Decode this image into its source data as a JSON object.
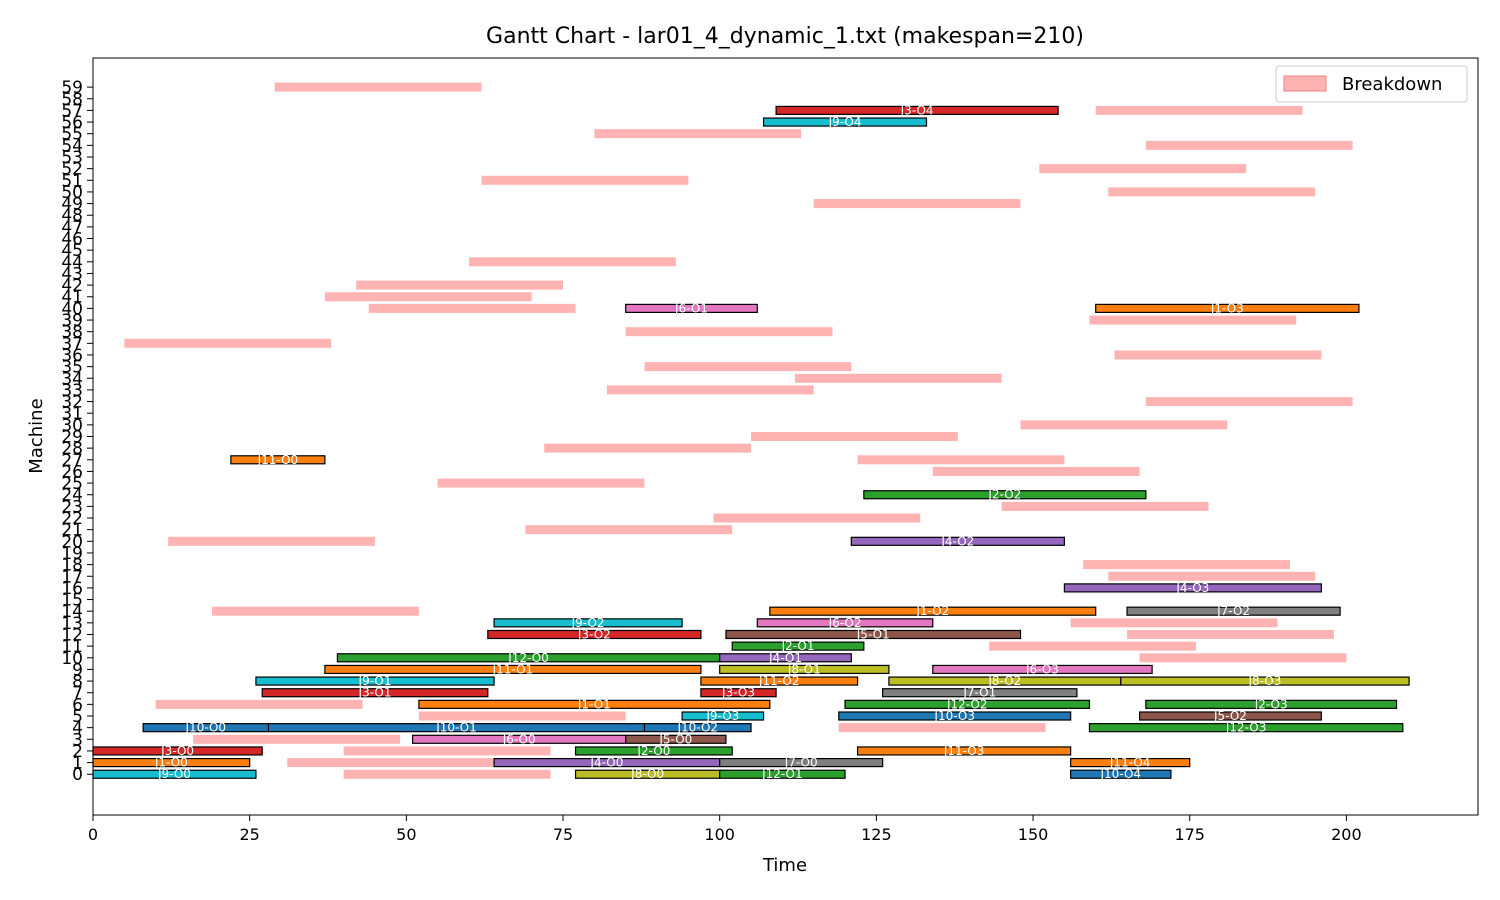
{
  "chart_data": {
    "type": "gantt",
    "title": "Gantt Chart - lar01_4_dynamic_1.txt (makespan=210)",
    "xlabel": "Time",
    "ylabel": "Machine",
    "xlim": [
      0,
      221
    ],
    "ylim": [
      -3.5,
      61.5
    ],
    "xticks": [
      0,
      25,
      50,
      75,
      100,
      125,
      150,
      175,
      200
    ],
    "yticks": [
      0,
      1,
      2,
      3,
      4,
      5,
      6,
      7,
      8,
      9,
      10,
      11,
      12,
      13,
      14,
      15,
      16,
      17,
      18,
      19,
      20,
      21,
      22,
      23,
      24,
      25,
      26,
      27,
      28,
      29,
      30,
      31,
      32,
      33,
      34,
      35,
      36,
      37,
      38,
      39,
      40,
      41,
      42,
      43,
      44,
      45,
      46,
      47,
      48,
      49,
      50,
      51,
      52,
      53,
      54,
      55,
      56,
      57,
      58,
      59
    ],
    "legend": {
      "position": "top-right",
      "entries": [
        "Breakdown"
      ]
    },
    "colors": {
      "breakdown": "#ffb3b3",
      "legend_border": "#f08080",
      "J0": "#17becf",
      "J1": "#ff7f0e",
      "J2": "#2ca02c",
      "J3": "#d62728",
      "J4": "#9467bd",
      "J5": "#8c564b",
      "J6": "#e377c2",
      "J7": "#7f7f7f",
      "J8": "#bcbd22",
      "J9": "#17becf",
      "J10": "#1f77b4",
      "J11": "#ff7f0e",
      "J12": "#2ca02c"
    },
    "operations": [
      {
        "machine": 0,
        "start": 0,
        "end": 26,
        "label": "J9-O0",
        "job": "J9"
      },
      {
        "machine": 0,
        "start": 77,
        "end": 100,
        "label": "J8-O0",
        "job": "J8"
      },
      {
        "machine": 0,
        "start": 100,
        "end": 120,
        "label": "J12-O1",
        "job": "J12"
      },
      {
        "machine": 0,
        "start": 156,
        "end": 172,
        "label": "J10-O4",
        "job": "J10"
      },
      {
        "machine": 1,
        "start": 0,
        "end": 25,
        "label": "J1-O0",
        "job": "J1"
      },
      {
        "machine": 1,
        "start": 64,
        "end": 100,
        "label": "J4-O0",
        "job": "J4"
      },
      {
        "machine": 1,
        "start": 100,
        "end": 126,
        "label": "J7-O0",
        "job": "J7"
      },
      {
        "machine": 1,
        "start": 156,
        "end": 175,
        "label": "J11-O4",
        "job": "J11"
      },
      {
        "machine": 2,
        "start": 0,
        "end": 27,
        "label": "J3-O0",
        "job": "J3"
      },
      {
        "machine": 2,
        "start": 77,
        "end": 102,
        "label": "J2-O0",
        "job": "J2"
      },
      {
        "machine": 2,
        "start": 122,
        "end": 156,
        "label": "J11-O3",
        "job": "J11"
      },
      {
        "machine": 3,
        "start": 51,
        "end": 85,
        "label": "J6-O0",
        "job": "J6"
      },
      {
        "machine": 3,
        "start": 85,
        "end": 101,
        "label": "J5-O0",
        "job": "J5"
      },
      {
        "machine": 4,
        "start": 8,
        "end": 28,
        "label": "J10-O0",
        "job": "J10"
      },
      {
        "machine": 4,
        "start": 28,
        "end": 88,
        "label": "J10-O1",
        "job": "J10"
      },
      {
        "machine": 4,
        "start": 88,
        "end": 105,
        "label": "J10-O2",
        "job": "J10"
      },
      {
        "machine": 4,
        "start": 159,
        "end": 209,
        "label": "J12-O3",
        "job": "J12"
      },
      {
        "machine": 5,
        "start": 94,
        "end": 107,
        "label": "J9-O3",
        "job": "J9"
      },
      {
        "machine": 5,
        "start": 119,
        "end": 156,
        "label": "J10-O3",
        "job": "J10"
      },
      {
        "machine": 5,
        "start": 167,
        "end": 196,
        "label": "J5-O2",
        "job": "J5"
      },
      {
        "machine": 6,
        "start": 52,
        "end": 108,
        "label": "J1-O1",
        "job": "J1"
      },
      {
        "machine": 6,
        "start": 120,
        "end": 159,
        "label": "J12-O2",
        "job": "J12"
      },
      {
        "machine": 6,
        "start": 168,
        "end": 208,
        "label": "J2-O3",
        "job": "J2"
      },
      {
        "machine": 7,
        "start": 27,
        "end": 63,
        "label": "J3-O1",
        "job": "J3"
      },
      {
        "machine": 7,
        "start": 97,
        "end": 109,
        "label": "J3-O3",
        "job": "J3"
      },
      {
        "machine": 7,
        "start": 126,
        "end": 157,
        "label": "J7-O1",
        "job": "J7"
      },
      {
        "machine": 8,
        "start": 26,
        "end": 64,
        "label": "J9-O1",
        "job": "J9"
      },
      {
        "machine": 8,
        "start": 97,
        "end": 122,
        "label": "J11-O2",
        "job": "J11"
      },
      {
        "machine": 8,
        "start": 127,
        "end": 164,
        "label": "J8-O2",
        "job": "J8"
      },
      {
        "machine": 8,
        "start": 164,
        "end": 210,
        "label": "J8-O3",
        "job": "J8"
      },
      {
        "machine": 9,
        "start": 37,
        "end": 97,
        "label": "J11-O1",
        "job": "J11"
      },
      {
        "machine": 9,
        "start": 100,
        "end": 127,
        "label": "J8-O1",
        "job": "J8"
      },
      {
        "machine": 9,
        "start": 134,
        "end": 169,
        "label": "J6-O3",
        "job": "J6"
      },
      {
        "machine": 10,
        "start": 39,
        "end": 100,
        "label": "J12-O0",
        "job": "J12"
      },
      {
        "machine": 10,
        "start": 100,
        "end": 121,
        "label": "J4-O1",
        "job": "J4"
      },
      {
        "machine": 11,
        "start": 102,
        "end": 123,
        "label": "J2-O1",
        "job": "J2"
      },
      {
        "machine": 12,
        "start": 63,
        "end": 97,
        "label": "J3-O2",
        "job": "J3"
      },
      {
        "machine": 12,
        "start": 101,
        "end": 148,
        "label": "J5-O1",
        "job": "J5"
      },
      {
        "machine": 13,
        "start": 64,
        "end": 94,
        "label": "J9-O2",
        "job": "J9"
      },
      {
        "machine": 13,
        "start": 106,
        "end": 134,
        "label": "J6-O2",
        "job": "J6"
      },
      {
        "machine": 14,
        "start": 108,
        "end": 160,
        "label": "J1-O2",
        "job": "J1"
      },
      {
        "machine": 14,
        "start": 165,
        "end": 199,
        "label": "J7-O2",
        "job": "J7"
      },
      {
        "machine": 16,
        "start": 155,
        "end": 196,
        "label": "J4-O3",
        "job": "J4"
      },
      {
        "machine": 20,
        "start": 121,
        "end": 155,
        "label": "J4-O2",
        "job": "J4"
      },
      {
        "machine": 24,
        "start": 123,
        "end": 168,
        "label": "J2-O2",
        "job": "J2"
      },
      {
        "machine": 27,
        "start": 22,
        "end": 37,
        "label": "J11-O0",
        "job": "J11"
      },
      {
        "machine": 40,
        "start": 85,
        "end": 106,
        "label": "J6-O1",
        "job": "J6"
      },
      {
        "machine": 40,
        "start": 160,
        "end": 202,
        "label": "J1-O3",
        "job": "J1"
      },
      {
        "machine": 56,
        "start": 107,
        "end": 133,
        "label": "J9-O4",
        "job": "J9"
      },
      {
        "machine": 57,
        "start": 109,
        "end": 154,
        "label": "J3-O4",
        "job": "J3"
      }
    ],
    "breakdowns": [
      {
        "machine": 0,
        "start": 40,
        "end": 73
      },
      {
        "machine": 1,
        "start": 31,
        "end": 64
      },
      {
        "machine": 2,
        "start": 40,
        "end": 73
      },
      {
        "machine": 3,
        "start": 16,
        "end": 49
      },
      {
        "machine": 4,
        "start": 119,
        "end": 152
      },
      {
        "machine": 5,
        "start": 52,
        "end": 85
      },
      {
        "machine": 6,
        "start": 10,
        "end": 43
      },
      {
        "machine": 10,
        "start": 167,
        "end": 200
      },
      {
        "machine": 11,
        "start": 143,
        "end": 176
      },
      {
        "machine": 12,
        "start": 165,
        "end": 198
      },
      {
        "machine": 13,
        "start": 156,
        "end": 189
      },
      {
        "machine": 14,
        "start": 19,
        "end": 52
      },
      {
        "machine": 17,
        "start": 162,
        "end": 195
      },
      {
        "machine": 18,
        "start": 158,
        "end": 191
      },
      {
        "machine": 20,
        "start": 12,
        "end": 45
      },
      {
        "machine": 21,
        "start": 69,
        "end": 102
      },
      {
        "machine": 22,
        "start": 99,
        "end": 132
      },
      {
        "machine": 23,
        "start": 145,
        "end": 178
      },
      {
        "machine": 25,
        "start": 55,
        "end": 88
      },
      {
        "machine": 26,
        "start": 134,
        "end": 167
      },
      {
        "machine": 27,
        "start": 122,
        "end": 155
      },
      {
        "machine": 28,
        "start": 72,
        "end": 105
      },
      {
        "machine": 29,
        "start": 105,
        "end": 138
      },
      {
        "machine": 30,
        "start": 148,
        "end": 181
      },
      {
        "machine": 32,
        "start": 168,
        "end": 201
      },
      {
        "machine": 33,
        "start": 82,
        "end": 115
      },
      {
        "machine": 34,
        "start": 112,
        "end": 145
      },
      {
        "machine": 35,
        "start": 88,
        "end": 121
      },
      {
        "machine": 36,
        "start": 163,
        "end": 196
      },
      {
        "machine": 37,
        "start": 5,
        "end": 38
      },
      {
        "machine": 38,
        "start": 85,
        "end": 118
      },
      {
        "machine": 39,
        "start": 159,
        "end": 192
      },
      {
        "machine": 40,
        "start": 44,
        "end": 77
      },
      {
        "machine": 41,
        "start": 37,
        "end": 70
      },
      {
        "machine": 42,
        "start": 42,
        "end": 75
      },
      {
        "machine": 44,
        "start": 60,
        "end": 93
      },
      {
        "machine": 49,
        "start": 115,
        "end": 148
      },
      {
        "machine": 50,
        "start": 162,
        "end": 195
      },
      {
        "machine": 51,
        "start": 62,
        "end": 95
      },
      {
        "machine": 52,
        "start": 151,
        "end": 184
      },
      {
        "machine": 54,
        "start": 168,
        "end": 201
      },
      {
        "machine": 55,
        "start": 80,
        "end": 113
      },
      {
        "machine": 57,
        "start": 160,
        "end": 193
      },
      {
        "machine": 59,
        "start": 29,
        "end": 62
      }
    ]
  }
}
